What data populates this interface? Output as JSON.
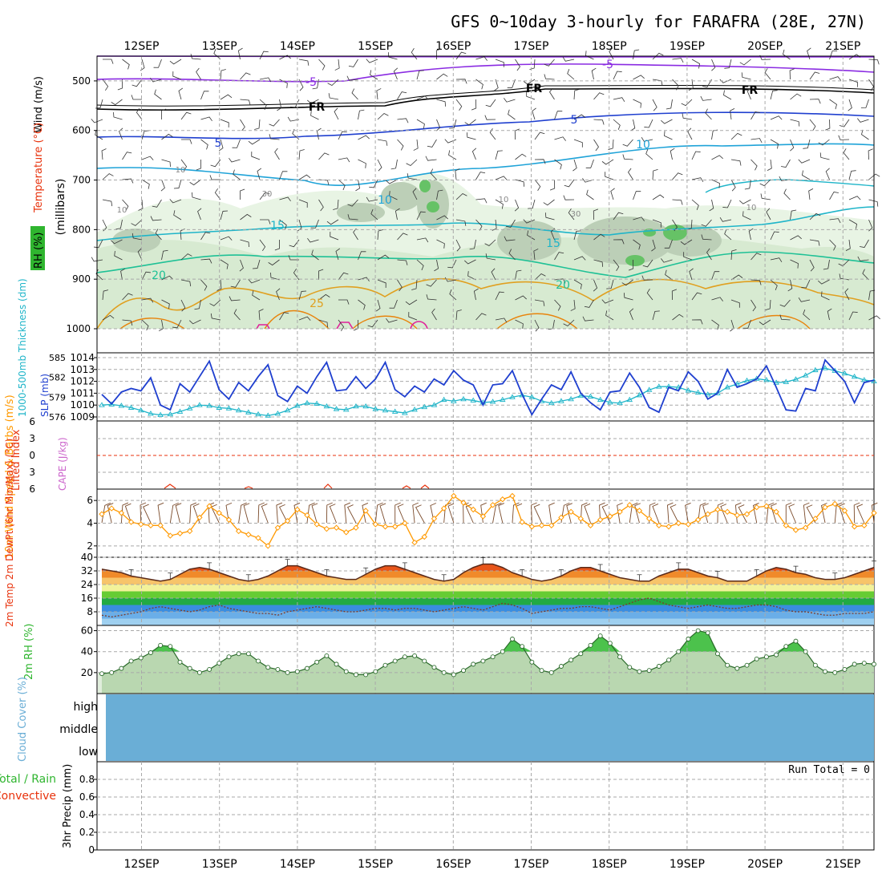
{
  "chart_data": {
    "type": "meteogram",
    "title": "GFS 0~10day 3-hourly for FARAFRA (28E, 27N)",
    "date_labels": [
      "12SEP",
      "13SEP",
      "14SEP",
      "15SEP",
      "16SEP",
      "17SEP",
      "18SEP",
      "19SEP",
      "20SEP",
      "21SEP"
    ],
    "colors": {
      "grid": "#a9a9a9",
      "frame": "#000000",
      "purple": "#8a2be2",
      "blue": "#1f3fcf",
      "cyan": "#1fb5c9",
      "green": "#2fb52f",
      "orange": "#ff9900",
      "red": "#e8320c",
      "cloud": "#6aaed6"
    },
    "upper_air": {
      "ylabel_mb": "(millibars)",
      "ylabel_wind": "Wind (m/s)",
      "ylabel_temp": "Temperature (°C)",
      "ylabel_rh": "RH (%)",
      "yticks": [
        500,
        600,
        700,
        800,
        900,
        1000
      ],
      "ylim": [
        450,
        1000
      ],
      "contour_labels": [
        "-5",
        "-5",
        "FR",
        "FR",
        "FR",
        "5",
        "5",
        "10",
        "10",
        "10",
        "15",
        "15",
        "20",
        "20",
        "25",
        "10",
        "30",
        "30",
        "10",
        "10"
      ]
    },
    "slp_panel": {
      "ylabel_thick": "1000-500mb Thickness (dm)",
      "ylabel_slp": "SLP (mb)",
      "thick_ticks": [
        576,
        579,
        582,
        585
      ],
      "slp_ticks": [
        1009,
        1010,
        1011,
        1012,
        1013,
        1014
      ],
      "slp_ylim": [
        1009,
        1014
      ],
      "slp_series": [
        1010.9,
        1010.1,
        1011.1,
        1011.4,
        1011.2,
        1012.3,
        1010.0,
        1009.6,
        1011.8,
        1011.1,
        1012.4,
        1013.7,
        1011.3,
        1010.5,
        1011.9,
        1011.2,
        1012.4,
        1013.4,
        1010.8,
        1010.3,
        1011.6,
        1011.0,
        1012.4,
        1013.6,
        1011.2,
        1011.3,
        1012.4,
        1011.4,
        1012.2,
        1013.6,
        1011.3,
        1010.7,
        1011.6,
        1011.1,
        1012.2,
        1011.7,
        1012.9,
        1012.1,
        1011.7,
        1010.0,
        1011.7,
        1011.8,
        1012.9,
        1010.9,
        1009.2,
        1010.5,
        1011.7,
        1011.3,
        1012.8,
        1011.0,
        1010.2,
        1009.6,
        1011.1,
        1011.2,
        1012.7,
        1011.5,
        1009.8,
        1009.4,
        1011.5,
        1011.2,
        1012.8,
        1012.0,
        1010.5,
        1011.0,
        1013.0,
        1011.5,
        1011.8,
        1012.2,
        1013.3,
        1011.5,
        1009.6,
        1009.5,
        1011.4,
        1011.2,
        1013.8,
        1012.9,
        1012.0,
        1010.2,
        1011.9,
        1012.1
      ],
      "thick_series": [
        577.8,
        577.9,
        577.7,
        577.4,
        577.0,
        576.5,
        576.3,
        576.4,
        576.8,
        577.3,
        577.8,
        577.7,
        577.4,
        577.3,
        577.0,
        576.7,
        576.4,
        576.2,
        576.5,
        577.0,
        577.7,
        578.1,
        578.0,
        577.6,
        577.2,
        577.1,
        577.6,
        577.6,
        577.2,
        577.0,
        576.8,
        576.6,
        577.1,
        577.5,
        577.8,
        578.6,
        578.4,
        578.7,
        578.5,
        578.2,
        578.3,
        578.6,
        579.0,
        579.3,
        579.0,
        578.4,
        578.1,
        578.4,
        578.7,
        579.2,
        579.1,
        578.6,
        578.2,
        578.1,
        578.6,
        579.3,
        580.1,
        580.6,
        580.6,
        580.5,
        580.0,
        579.7,
        579.4,
        579.6,
        580.5,
        581.0,
        581.5,
        581.8,
        581.6,
        581.2,
        581.3,
        581.7,
        582.3,
        583.1,
        583.4,
        583.0,
        582.6,
        582.1,
        581.6,
        581.4
      ]
    },
    "cape_panel": {
      "ylabel_li": "Lifted Index",
      "ylabel_cape": "CAPE (J/kg)",
      "li_ticks": [
        -6,
        -3,
        0,
        3,
        6
      ],
      "li_ylim": [
        -6,
        6
      ]
    },
    "wind_panel": {
      "ylabel": "10m Wind Speed & Barbs (m/s)",
      "yticks": [
        2,
        4,
        6
      ],
      "ylim": [
        1,
        7
      ],
      "speed": [
        4.8,
        5.3,
        4.9,
        4.1,
        3.9,
        3.8,
        3.8,
        2.9,
        3.1,
        3.3,
        4.5,
        5.5,
        4.9,
        4.3,
        3.3,
        3.0,
        2.7,
        2.0,
        3.6,
        4.2,
        5.2,
        4.7,
        3.9,
        3.5,
        3.6,
        3.2,
        3.6,
        5.1,
        3.9,
        3.7,
        3.7,
        4.0,
        2.3,
        2.8,
        4.4,
        5.3,
        6.4,
        5.8,
        5.2,
        4.6,
        5.6,
        6.1,
        6.4,
        4.1,
        3.7,
        3.8,
        3.8,
        4.5,
        5.0,
        4.4,
        3.8,
        4.3,
        4.6,
        5.0,
        5.6,
        5.1,
        4.4,
        3.8,
        3.7,
        4.0,
        3.9,
        4.3,
        4.8,
        5.2,
        5.0,
        4.7,
        4.8,
        5.4,
        5.5,
        5.0,
        3.8,
        3.4,
        3.6,
        4.4,
        5.4,
        5.7,
        5.1,
        3.7,
        3.8,
        4.9
      ]
    },
    "temp_panel": {
      "ylabel": "2m Temp 2m DewPt (6hr Min/Max) (°C)",
      "yticks": [
        8,
        16,
        24,
        32,
        40
      ],
      "ylim": [
        0,
        40
      ],
      "temp": [
        33,
        32,
        31,
        29,
        28,
        27,
        26,
        27,
        30,
        33,
        34,
        33,
        31,
        29,
        27,
        26,
        27,
        29,
        32,
        35,
        35,
        33,
        31,
        29,
        28,
        27,
        27,
        30,
        33,
        35,
        35,
        33,
        31,
        29,
        27,
        26,
        27,
        31,
        34,
        36,
        36,
        34,
        31,
        29,
        27,
        26,
        27,
        29,
        32,
        34,
        34,
        32,
        30,
        28,
        27,
        26,
        26,
        29,
        31,
        33,
        33,
        31,
        29,
        28,
        26,
        26,
        26,
        29,
        32,
        34,
        33,
        31,
        30,
        28,
        27,
        27,
        28,
        30,
        32,
        34
      ],
      "dewpt": [
        6,
        5,
        6,
        7,
        8,
        10,
        11,
        10,
        9,
        8,
        9,
        11,
        12,
        10,
        9,
        8,
        7,
        7,
        6,
        8,
        9,
        10,
        11,
        10,
        9,
        8,
        8,
        9,
        10,
        10,
        9,
        10,
        10,
        9,
        8,
        9,
        10,
        11,
        10,
        9,
        11,
        13,
        12,
        10,
        7,
        8,
        9,
        10,
        10,
        11,
        11,
        10,
        9,
        11,
        13,
        15,
        16,
        14,
        12,
        11,
        10,
        11,
        12,
        11,
        10,
        10,
        11,
        12,
        12,
        11,
        9,
        8,
        8,
        7,
        6,
        6,
        7,
        7,
        7,
        8
      ]
    },
    "rh_panel": {
      "ylabel": "2m RH (%)",
      "yticks": [
        20,
        40,
        60
      ],
      "ylim": [
        0,
        65
      ],
      "rh": [
        19,
        20,
        24,
        31,
        34,
        39,
        46,
        45,
        30,
        24,
        20,
        23,
        29,
        35,
        38,
        38,
        31,
        25,
        23,
        20,
        21,
        24,
        30,
        36,
        28,
        21,
        18,
        18,
        21,
        27,
        31,
        35,
        36,
        31,
        25,
        20,
        18,
        22,
        28,
        31,
        35,
        40,
        52,
        45,
        30,
        22,
        20,
        26,
        32,
        38,
        46,
        55,
        48,
        35,
        25,
        21,
        22,
        26,
        32,
        40,
        52,
        60,
        58,
        38,
        27,
        24,
        27,
        33,
        35,
        37,
        45,
        50,
        40,
        27,
        21,
        20,
        23,
        28,
        29,
        28
      ]
    },
    "cloud_panel": {
      "ylabel": "Cloud Cover (%)",
      "levels": [
        "high",
        "middle",
        "low"
      ]
    },
    "precip_panel": {
      "ylabel_total": "Total / Rain",
      "ylabel_conv": "Convective",
      "ylabel": "3hr Precip (mm)",
      "yticks": [
        "0",
        "0.2",
        "0.4",
        "0.6",
        "0.8"
      ],
      "ylim": [
        0,
        1
      ],
      "run_total_label": "Run Total = 0"
    }
  }
}
